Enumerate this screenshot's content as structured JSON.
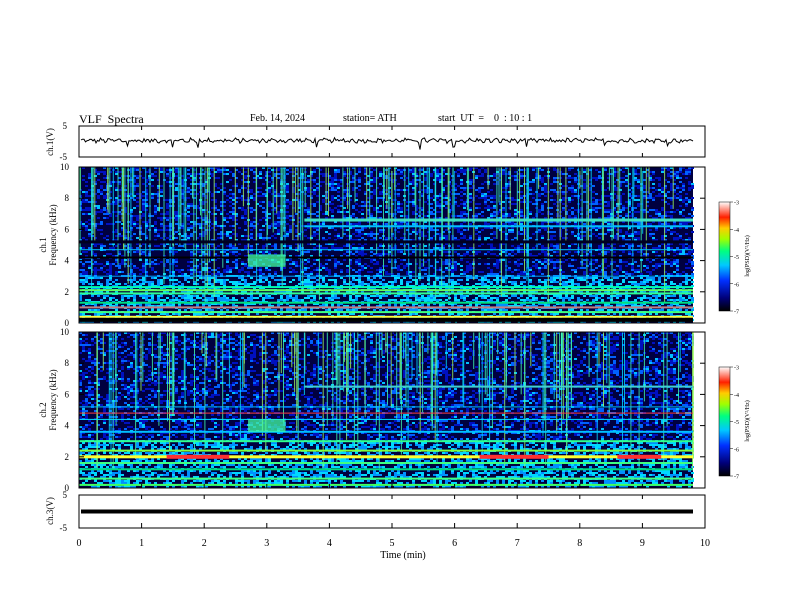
{
  "header": {
    "title": "VLF  Spectra",
    "date": "Feb. 14, 2024",
    "station": "station= ATH",
    "start_ut": "start  UT  =    0  : 10 : 1"
  },
  "chart_data": [
    {
      "type": "line",
      "id": "ch1-waveform",
      "ylabel": "ch.1(V)",
      "ylim": [
        -5,
        5
      ],
      "yticks": [
        -5,
        5
      ],
      "xlim": [
        0,
        10
      ],
      "baseline_v": 0.3,
      "color": "#000000"
    },
    {
      "type": "heatmap",
      "id": "ch1-spectrogram",
      "ylabel": "ch.1",
      "ylabel2": "Frequency  (kHz)",
      "ylim": [
        0,
        10
      ],
      "yticks": [
        0,
        2,
        4,
        6,
        8,
        10
      ],
      "xlim": [
        0,
        10
      ],
      "colorbar": {
        "label": "log(PSD)(V²/Hz)",
        "range": [
          -7,
          -3
        ],
        "ticks": [
          -3,
          -4,
          -5,
          -6,
          -7
        ]
      },
      "features": {
        "strong_bands_khz": [
          0.2,
          0.4,
          0.7,
          1.0
        ],
        "mid_bands_khz": [
          1.9,
          2.1,
          2.3,
          4.2,
          4.7
        ],
        "line_6_6khz_from_min": 3.6,
        "burst_min": [
          2.7,
          3.3
        ]
      }
    },
    {
      "type": "heatmap",
      "id": "ch2-spectrogram",
      "ylabel": "ch.2",
      "ylabel2": "Frequency  (kHz)",
      "ylim": [
        0,
        10
      ],
      "yticks": [
        0,
        2,
        4,
        6,
        8,
        10
      ],
      "xlim": [
        0,
        10
      ],
      "colorbar": {
        "label": "log(PSD)(V²/Hz)",
        "range": [
          -7,
          -3
        ],
        "ticks": [
          -3,
          -4,
          -5,
          -6,
          -7
        ]
      },
      "features": {
        "strong_band_khz": 2.0,
        "red_segments_min": [
          [
            1.4,
            2.4
          ],
          [
            6.4,
            7.5
          ],
          [
            8.6,
            9.3
          ]
        ],
        "burst_min": [
          2.7,
          3.3
        ]
      }
    },
    {
      "type": "line",
      "id": "ch3-waveform",
      "ylabel": "ch.3(V)",
      "ylim": [
        -5,
        5
      ],
      "yticks": [
        -5,
        5
      ],
      "xlim": [
        0,
        10
      ],
      "value_v": 0.0,
      "xlabel": "Time  (min)",
      "xticks": [
        0,
        1,
        2,
        3,
        4,
        5,
        6,
        7,
        8,
        9,
        10
      ]
    }
  ]
}
